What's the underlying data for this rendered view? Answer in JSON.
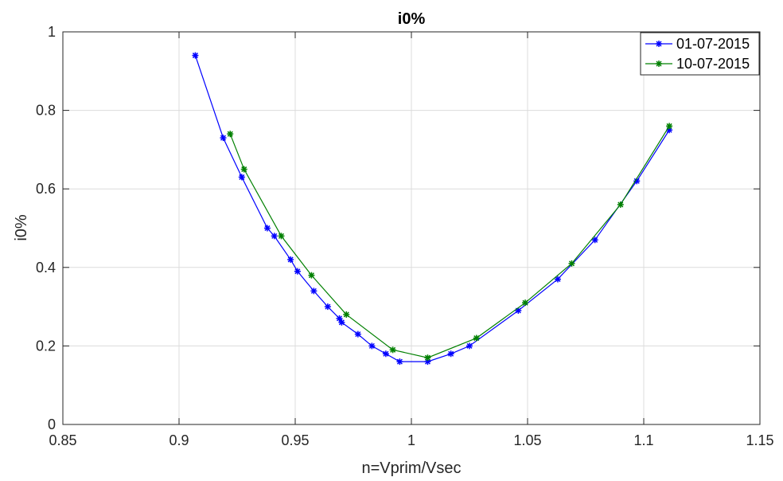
{
  "chart_data": {
    "type": "line",
    "title": "i0%",
    "xlabel": "n=Vprim/Vsec",
    "ylabel": "i0%",
    "xlim": [
      0.85,
      1.15
    ],
    "ylim": [
      0,
      1
    ],
    "xticks": [
      0.85,
      0.9,
      0.95,
      1,
      1.05,
      1.1,
      1.15
    ],
    "yticks": [
      0,
      0.2,
      0.4,
      0.6,
      0.8,
      1
    ],
    "xtick_labels": [
      "0.85",
      "0.9",
      "0.95",
      "1",
      "1.05",
      "1.1",
      "1.15"
    ],
    "ytick_labels": [
      "0",
      "0.2",
      "0.4",
      "0.6",
      "0.8",
      "1"
    ],
    "grid": true,
    "legend_position": "top-right",
    "marker": "asterisk",
    "series": [
      {
        "name": "01-07-2015",
        "color": "#0000ff",
        "x": [
          0.907,
          0.919,
          0.927,
          0.938,
          0.941,
          0.948,
          0.951,
          0.958,
          0.964,
          0.969,
          0.97,
          0.977,
          0.983,
          0.989,
          0.995,
          1.007,
          1.017,
          1.025,
          1.046,
          1.063,
          1.079,
          1.097,
          1.111
        ],
        "y": [
          0.94,
          0.73,
          0.63,
          0.5,
          0.48,
          0.42,
          0.39,
          0.34,
          0.3,
          0.27,
          0.26,
          0.23,
          0.2,
          0.18,
          0.16,
          0.16,
          0.18,
          0.2,
          0.29,
          0.37,
          0.47,
          0.62,
          0.75
        ]
      },
      {
        "name": "10-07-2015",
        "color": "#008000",
        "x": [
          0.922,
          0.928,
          0.944,
          0.957,
          0.972,
          0.992,
          1.007,
          1.028,
          1.049,
          1.069,
          1.09,
          1.111
        ],
        "y": [
          0.74,
          0.65,
          0.48,
          0.38,
          0.28,
          0.19,
          0.17,
          0.22,
          0.31,
          0.41,
          0.56,
          0.76
        ]
      }
    ]
  }
}
